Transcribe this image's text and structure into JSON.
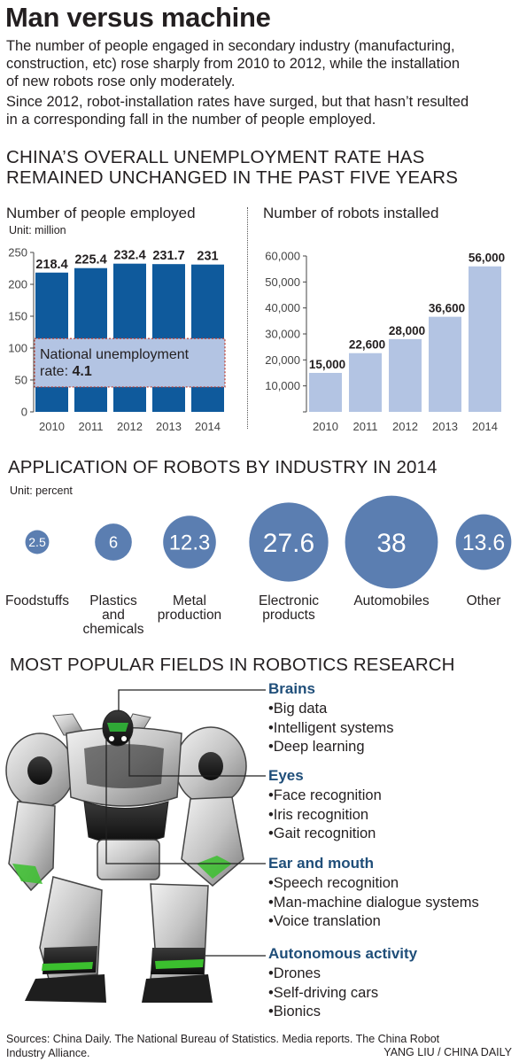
{
  "title": "Man versus machine",
  "intro": [
    "The number of people engaged in secondary industry (manufacturing,",
    "construction, etc) rose sharply from 2010 to 2012, while the installation",
    "of new robots rose only moderately.",
    "Since 2012, robot-installation rates have surged, but that hasn’t resulted",
    "in a corresponding fall in the number of people employed."
  ],
  "section1_title_lines": [
    "CHINA’S OVERALL UNEMPLOYMENT RATE HAS",
    "REMAINED UNCHANGED IN THE PAST FIVE YEARS"
  ],
  "colors": {
    "employed_bar": "#0f5a9c",
    "overlay": "#b3c4e3",
    "overlay_border": "#c0392b",
    "robot_bar": "#b3c4e3",
    "bubble": "#5b7eb1",
    "field_heading": "#1f4e79"
  },
  "chart_data": [
    {
      "type": "bar",
      "title": "Number of people employed",
      "unit": "Unit: million",
      "categories": [
        "2010",
        "2011",
        "2012",
        "2013",
        "2014"
      ],
      "values": [
        218.4,
        225.4,
        232.4,
        231.7,
        231
      ],
      "value_labels": [
        "218.4",
        "225.4",
        "232.4",
        "231.7",
        "231"
      ],
      "yticks": [
        0,
        50,
        100,
        150,
        200,
        250
      ],
      "ylim": [
        0,
        250
      ],
      "annotation": {
        "text_line1": "National unemployment",
        "text_line2": "rate:",
        "value": "4.1",
        "range": [
          39,
          115
        ]
      }
    },
    {
      "type": "bar",
      "title": "Number of robots installed",
      "categories": [
        "2010",
        "2011",
        "2012",
        "2013",
        "2014"
      ],
      "values": [
        15000,
        22600,
        28000,
        36600,
        56000
      ],
      "value_labels": [
        "15,000",
        "22,600",
        "28,000",
        "36,600",
        "56,000"
      ],
      "yticks": [
        0,
        10000,
        20000,
        30000,
        40000,
        50000,
        60000
      ],
      "ytick_labels": [
        "",
        "10,000",
        "20,000",
        "30,000",
        "40,000",
        "50,000",
        "60,000"
      ],
      "ylim": [
        0,
        60000
      ]
    },
    {
      "type": "bubble",
      "title": "APPLICATION OF ROBOTS BY INDUSTRY IN 2014",
      "unit": "Unit: percent",
      "categories": [
        "Foodstuffs",
        "Plastics and chemicals",
        "Metal production",
        "Electronic products",
        "Automobiles",
        "Other"
      ],
      "values": [
        2.5,
        6,
        12.3,
        27.6,
        38,
        13.6
      ],
      "value_labels": [
        "2.5",
        "6",
        "12.3",
        "27.6",
        "38",
        "13.6"
      ]
    }
  ],
  "bubble_label_lines": [
    [
      "Foodstuffs"
    ],
    [
      "Plastics",
      "and",
      "chemicals"
    ],
    [
      "Metal",
      "production"
    ],
    [
      "Electronic",
      "products"
    ],
    [
      "Automobiles"
    ],
    [
      "Other"
    ]
  ],
  "research": {
    "title": "MOST POPULAR FIELDS IN ROBOTICS RESEARCH",
    "fields": [
      {
        "name": "Brains",
        "items": [
          "•Big data",
          "•Intelligent systems",
          "•Deep learning"
        ]
      },
      {
        "name": "Eyes",
        "items": [
          "•Face recognition",
          "•Iris recognition",
          "•Gait recognition"
        ]
      },
      {
        "name": "Ear and mouth",
        "items": [
          "•Speech recognition",
          "•Man-machine dialogue systems",
          "•Voice translation"
        ]
      },
      {
        "name": "Autonomous activity",
        "items": [
          "•Drones",
          "•Self-driving cars",
          "•Bionics"
        ]
      }
    ]
  },
  "robot_image_icon": "robot-illustration",
  "sources": [
    "Sources: China Daily. The National Bureau of Statistics. Media reports. The China Robot",
    "Industry Alliance."
  ],
  "credit": "YANG LIU / CHINA DAILY"
}
